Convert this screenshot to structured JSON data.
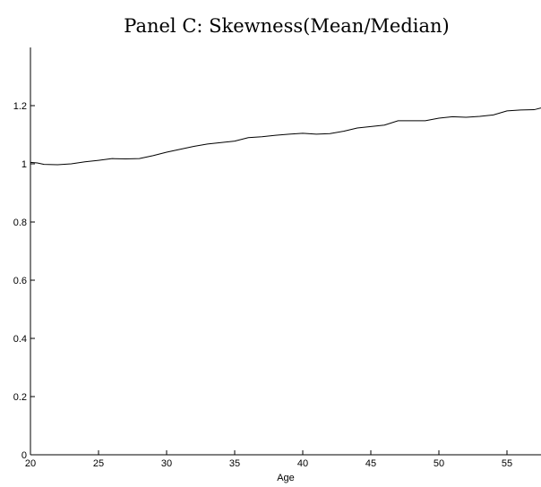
{
  "chart_data": {
    "type": "line",
    "title": "Panel C: Skewness(Mean/Median)",
    "xlabel": "Age",
    "ylabel": "",
    "xlim": [
      20,
      57.5
    ],
    "ylim": [
      0,
      1.4
    ],
    "x_ticks": [
      20,
      25,
      30,
      35,
      40,
      45,
      50,
      55
    ],
    "x_tick_labels": [
      "20",
      "25",
      "30",
      "35",
      "40",
      "45",
      "50",
      "55"
    ],
    "y_ticks": [
      0,
      0.2,
      0.4,
      0.6,
      0.8,
      1,
      1.2
    ],
    "y_tick_labels": [
      "0",
      "0.2",
      "0.4",
      "0.6",
      "0.8",
      "1",
      "1.2"
    ],
    "grid": false,
    "series": [
      {
        "x": [
          20,
          20.5,
          21,
          22,
          23,
          24,
          25,
          26,
          27,
          28,
          29,
          30,
          31,
          32,
          33,
          34,
          35,
          36,
          37,
          38,
          39,
          40,
          41,
          42,
          43,
          44,
          45,
          46,
          47,
          48,
          49,
          50,
          51,
          52,
          53,
          54,
          55,
          56,
          57,
          57.5
        ],
        "y": [
          1.005,
          1.003,
          0.998,
          0.997,
          1.0,
          1.007,
          1.012,
          1.018,
          1.017,
          1.018,
          1.028,
          1.04,
          1.05,
          1.06,
          1.068,
          1.073,
          1.078,
          1.09,
          1.093,
          1.098,
          1.102,
          1.105,
          1.102,
          1.104,
          1.112,
          1.123,
          1.128,
          1.133,
          1.148,
          1.148,
          1.148,
          1.157,
          1.162,
          1.16,
          1.163,
          1.168,
          1.182,
          1.185,
          1.186,
          1.192
        ]
      }
    ]
  }
}
